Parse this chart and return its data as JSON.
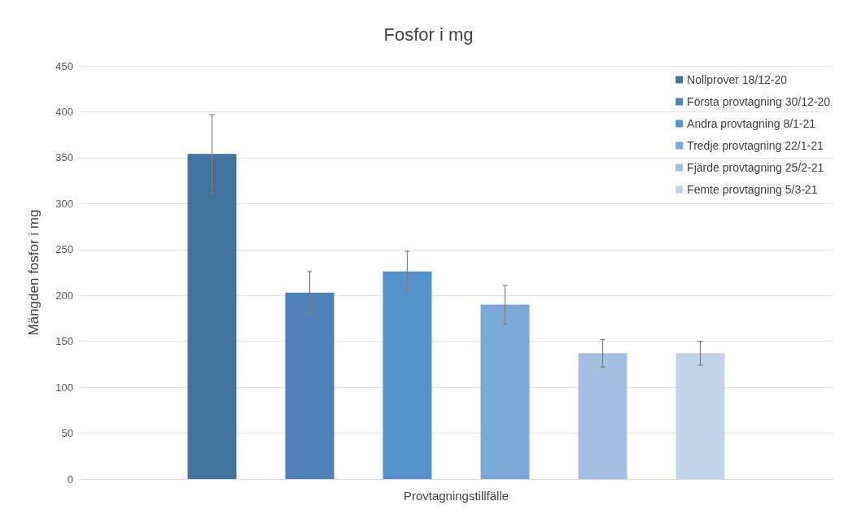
{
  "chart_data": {
    "type": "bar",
    "title": "Fosfor i mg",
    "xlabel": "Provtagningstillfälle",
    "ylabel": "Mängden fosfor i mg",
    "categories": [
      null
    ],
    "series": [
      {
        "name": "Nollprover 18/12-20",
        "color": "#44729f",
        "values": [
          354
        ],
        "errors": [
          43
        ]
      },
      {
        "name": "Första provtagning 30/12-20",
        "color": "#4f81b8",
        "values": [
          203
        ],
        "errors": [
          23
        ]
      },
      {
        "name": "Andra provtagning 8/1-21",
        "color": "#5592cc",
        "values": [
          226
        ],
        "errors": [
          22
        ]
      },
      {
        "name": "Tredje provtagning 22/1-21",
        "color": "#7ba7d7",
        "values": [
          190
        ],
        "errors": [
          21
        ]
      },
      {
        "name": "Fjärde provtagning 25/2-21",
        "color": "#a4bfe2",
        "values": [
          137
        ],
        "errors": [
          15
        ]
      },
      {
        "name": "Femte provtagning 5/3-21",
        "color": "#c3d3ea",
        "values": [
          137
        ],
        "errors": [
          13
        ]
      }
    ],
    "ylim": [
      0,
      450
    ],
    "yticks": [
      0,
      50,
      100,
      150,
      200,
      250,
      300,
      350,
      400,
      450
    ],
    "grid": "y",
    "legend": "top right"
  }
}
